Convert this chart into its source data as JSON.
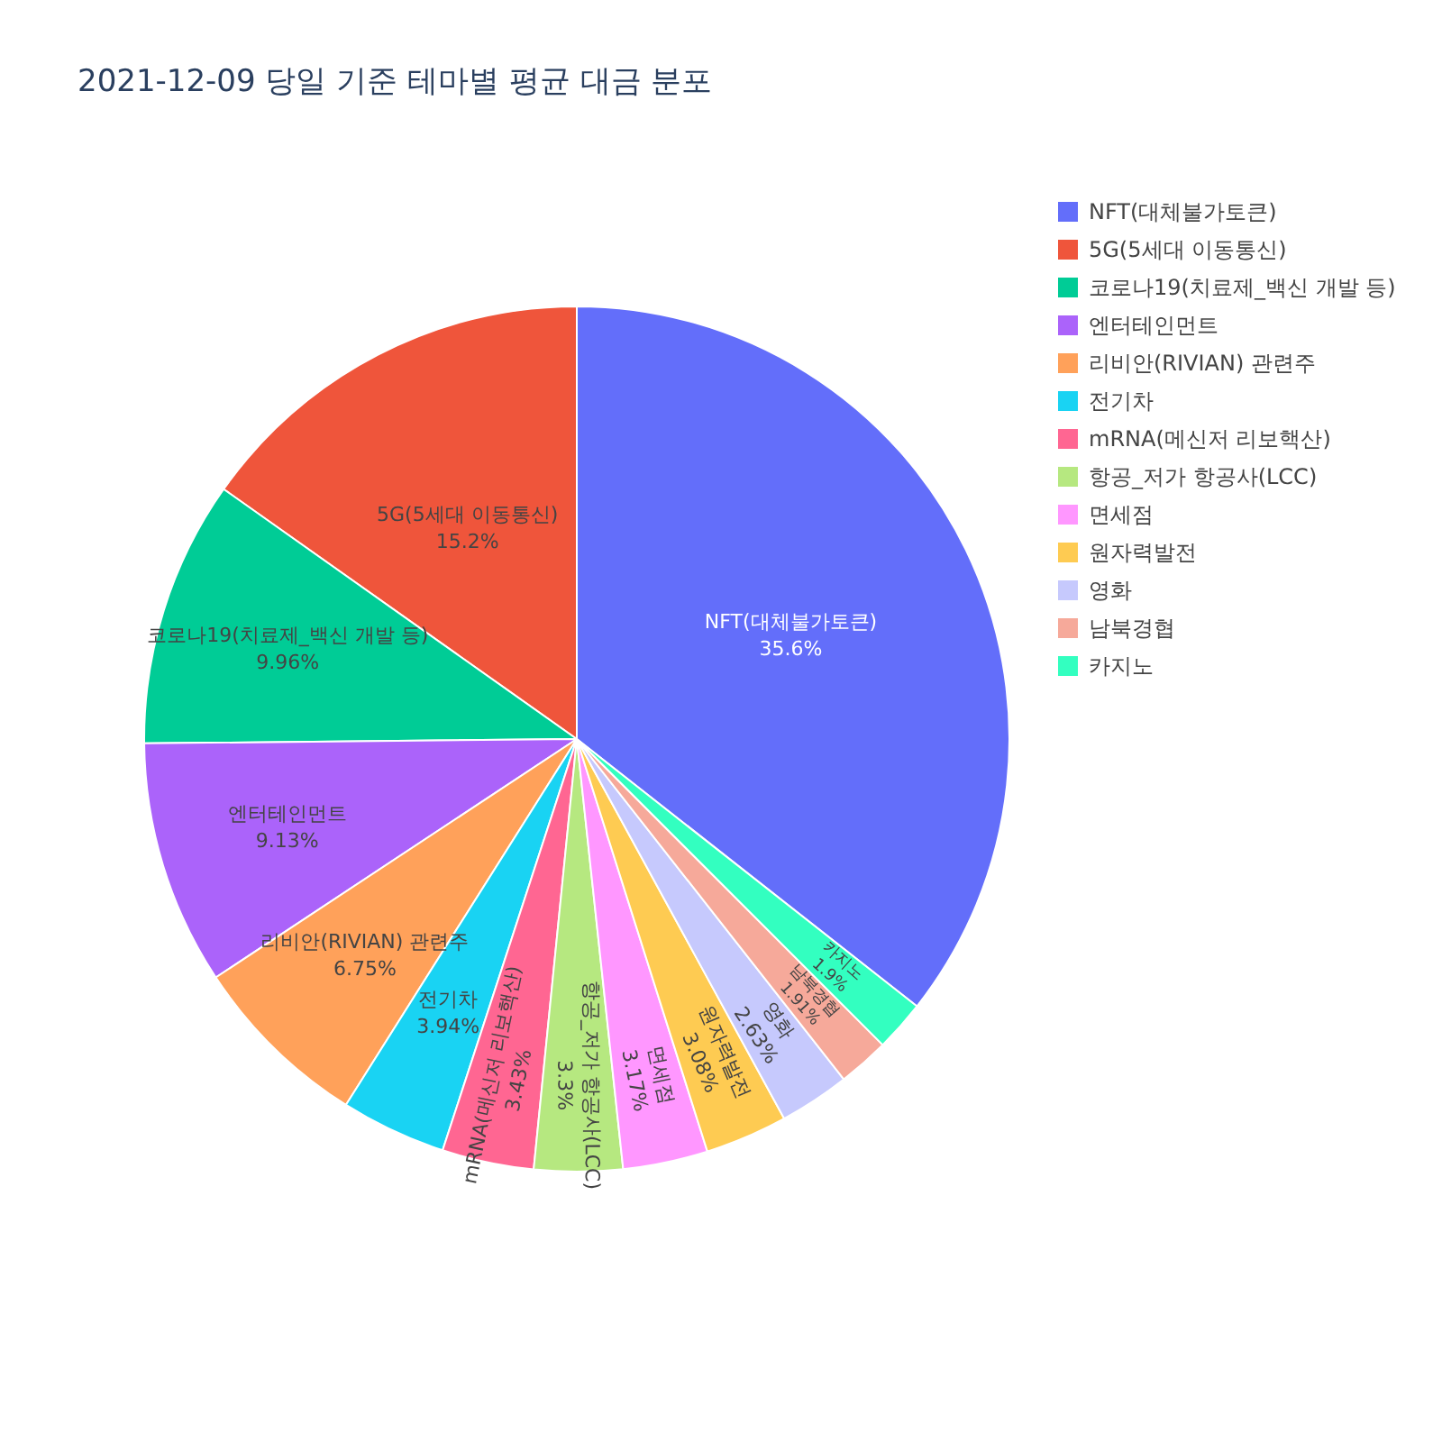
{
  "chart_data": {
    "type": "pie",
    "title": "2021-12-09 당일 기준 테마별 평균 대금 분포",
    "categories": [
      "NFT(대체불가토큰)",
      "5G(5세대 이동통신)",
      "코로나19(치료제_백신 개발 등)",
      "엔터테인먼트",
      "리비안(RIVIAN) 관련주",
      "전기차",
      "mRNA(메신저 리보핵산)",
      "항공_저가 항공사(LCC)",
      "면세점",
      "원자력발전",
      "영화",
      "남북경협",
      "카지노"
    ],
    "values": [
      35.6,
      15.2,
      9.96,
      9.13,
      6.75,
      3.94,
      3.43,
      3.3,
      3.17,
      3.08,
      2.63,
      1.91,
      1.9
    ],
    "value_labels": [
      "35.6%",
      "15.2%",
      "9.96%",
      "9.13%",
      "6.75%",
      "3.94%",
      "3.43%",
      "3.3%",
      "3.17%",
      "3.08%",
      "2.63%",
      "1.91%",
      "1.9%"
    ],
    "colors": [
      "#636efa",
      "#ef553b",
      "#00cc96",
      "#ab63fa",
      "#ffa15a",
      "#19d3f3",
      "#ff6692",
      "#b6e880",
      "#ff97ff",
      "#fecb52",
      "#c6c9fd",
      "#f6a99a",
      "#33ffc0"
    ],
    "legend": "top right"
  }
}
